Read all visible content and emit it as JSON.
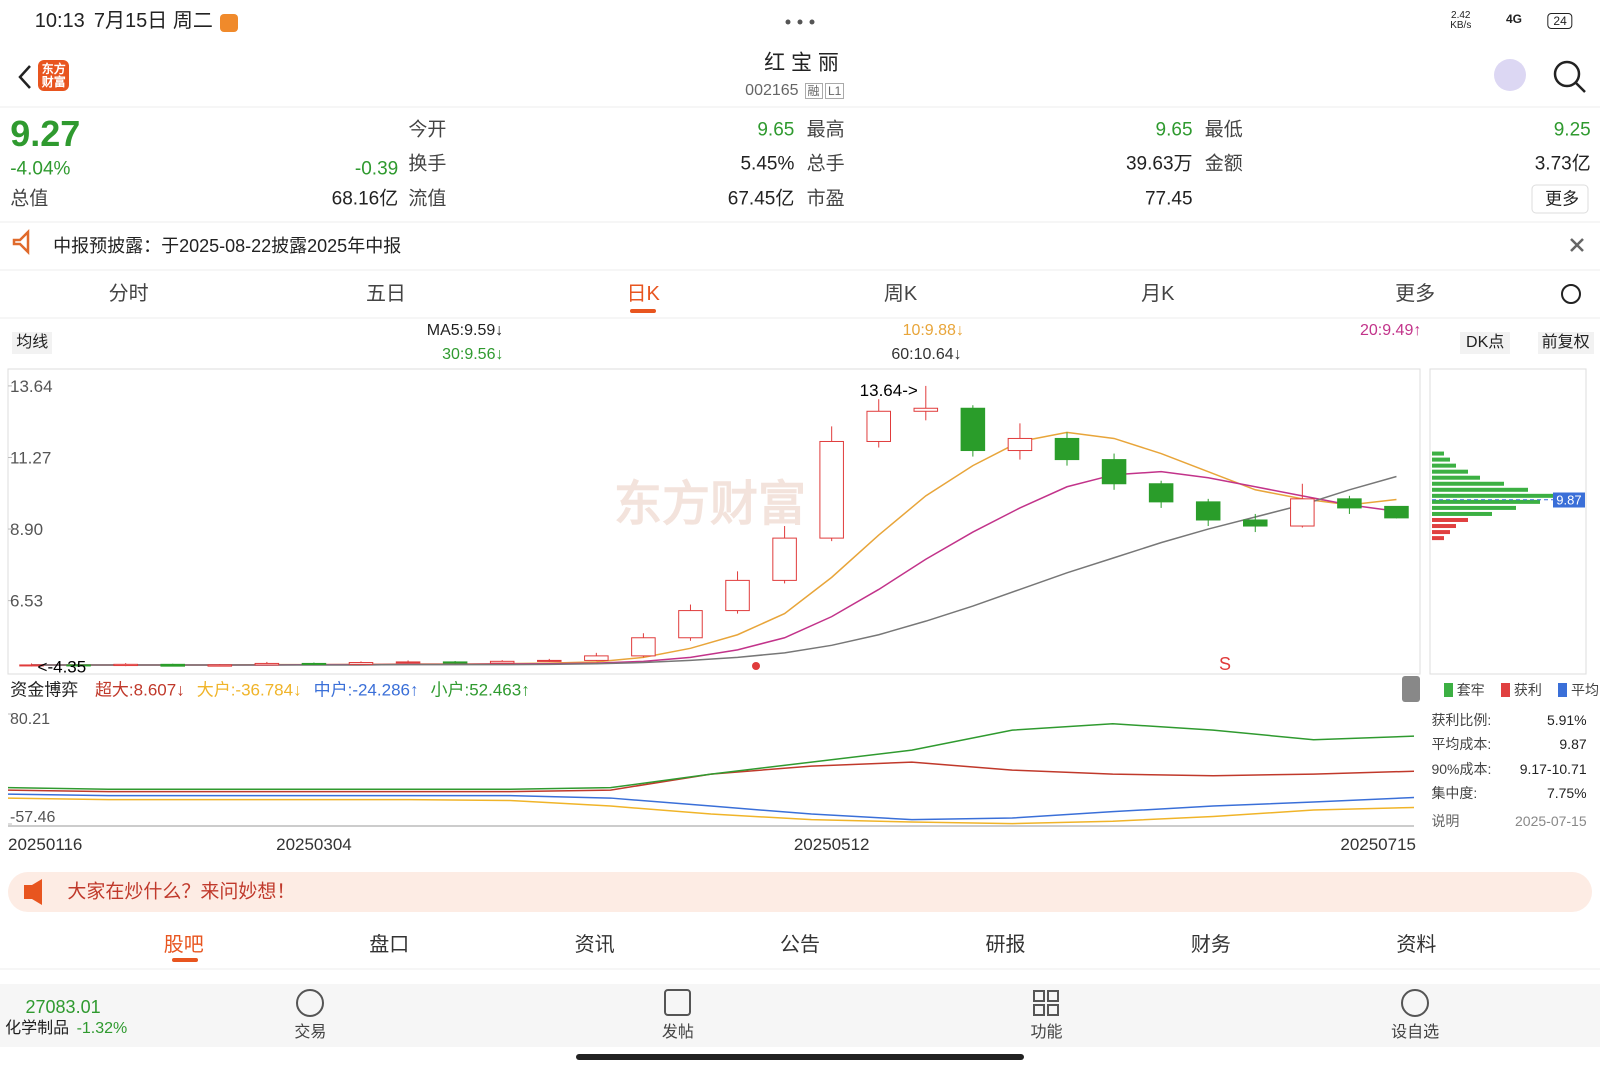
{
  "status_bar": {
    "time": "10:13",
    "date": "7月15日 周二",
    "speed": "2.42 KB/s",
    "network": "4G",
    "battery": "24"
  },
  "header": {
    "logo": "东方财富",
    "title": "红 宝 丽",
    "code": "002165",
    "badges": [
      "融",
      "L1"
    ]
  },
  "quote": {
    "price": "9.27",
    "change_pct": "-4.04%",
    "change": "-0.39",
    "fields": [
      {
        "label": "今开",
        "value": "9.65"
      },
      {
        "label": "最高",
        "value": "9.65"
      },
      {
        "label": "最低",
        "value": "9.25"
      },
      {
        "label": "换手",
        "value": "5.45%"
      },
      {
        "label": "总手",
        "value": "39.63万"
      },
      {
        "label": "金额",
        "value": "3.73亿"
      },
      {
        "label": "总值",
        "value": "68.16亿"
      },
      {
        "label": "流值",
        "value": "67.45亿"
      },
      {
        "label": "市盈",
        "value": "77.45"
      }
    ],
    "more": "更多"
  },
  "notice": "中报预披露：于2025-08-22披露2025年中报",
  "period_tabs": [
    "分时",
    "五日",
    "日K",
    "周K",
    "月K",
    "更多"
  ],
  "ma_selector": "均线",
  "ma_labels": [
    {
      "text": "MA5:9.59↓",
      "color": "#222222"
    },
    {
      "text": "10:9.88↓",
      "color": "#e8a53a"
    },
    {
      "text": "20:9.49↑",
      "color": "#c2338a"
    },
    {
      "text": "30:9.56↓",
      "color": "#2f9a2f"
    },
    {
      "text": "60:10.64↓",
      "color": "#333333"
    }
  ],
  "dk_button": "DK点",
  "adjust_button": "前复权",
  "kline": {
    "type": "candlestick",
    "watermark": "东方财富",
    "signal": "S",
    "up_color": "#e03b3b",
    "down_color": "#2a9d2a",
    "categories": [
      "20250116",
      null,
      null,
      null,
      null,
      null,
      "20250304",
      null,
      null,
      null,
      null,
      null,
      null,
      null,
      null,
      null,
      null,
      "20250512",
      null,
      null,
      null,
      null,
      null,
      null,
      null,
      null,
      null,
      null,
      null,
      "20250715"
    ],
    "open": [
      4.38,
      4.4,
      4.38,
      4.42,
      4.36,
      4.4,
      4.45,
      4.42,
      4.48,
      4.5,
      4.46,
      4.52,
      4.55,
      4.7,
      5.3,
      6.2,
      7.2,
      8.6,
      11.8,
      12.8,
      12.9,
      11.5,
      11.9,
      11.2,
      10.4,
      9.8,
      9.2,
      9.0,
      9.9,
      9.65
    ],
    "close": [
      4.4,
      4.38,
      4.42,
      4.36,
      4.4,
      4.45,
      4.42,
      4.48,
      4.5,
      4.46,
      4.52,
      4.55,
      4.7,
      5.3,
      6.2,
      7.2,
      8.6,
      11.8,
      12.8,
      12.9,
      11.5,
      11.9,
      11.2,
      10.4,
      9.8,
      9.2,
      9.0,
      9.9,
      9.6,
      9.27
    ],
    "high": [
      4.45,
      4.44,
      4.46,
      4.44,
      4.43,
      4.5,
      4.48,
      4.52,
      4.55,
      4.53,
      4.56,
      4.6,
      4.8,
      5.45,
      6.4,
      7.5,
      9.0,
      12.3,
      13.2,
      13.64,
      13.0,
      12.4,
      12.1,
      11.4,
      10.5,
      9.9,
      9.4,
      10.4,
      10.0,
      9.65
    ],
    "low": [
      4.35,
      4.35,
      4.36,
      4.35,
      4.36,
      4.38,
      4.4,
      4.41,
      4.46,
      4.44,
      4.45,
      4.5,
      4.53,
      4.65,
      5.2,
      6.1,
      7.1,
      8.5,
      11.6,
      12.5,
      11.3,
      11.2,
      11.0,
      10.2,
      9.6,
      9.0,
      8.8,
      8.95,
      9.4,
      9.25
    ],
    "ma_lines": [
      {
        "color": "#e8a53a",
        "values": [
          4.4,
          4.4,
          4.4,
          4.4,
          4.4,
          4.41,
          4.41,
          4.42,
          4.43,
          4.43,
          4.44,
          4.46,
          4.5,
          4.65,
          4.95,
          5.4,
          6.1,
          7.3,
          8.7,
          10.0,
          11.0,
          11.8,
          12.1,
          11.9,
          11.4,
          10.8,
          10.2,
          9.9,
          9.7,
          9.88
        ]
      },
      {
        "color": "#c2338a",
        "values": [
          4.4,
          4.4,
          4.4,
          4.4,
          4.4,
          4.4,
          4.41,
          4.41,
          4.42,
          4.42,
          4.43,
          4.44,
          4.46,
          4.52,
          4.65,
          4.9,
          5.3,
          6.0,
          6.9,
          7.9,
          8.8,
          9.6,
          10.3,
          10.7,
          10.8,
          10.6,
          10.3,
          10.0,
          9.7,
          9.49
        ]
      },
      {
        "color": "#777777",
        "values": [
          4.4,
          4.4,
          4.4,
          4.4,
          4.4,
          4.4,
          4.4,
          4.4,
          4.41,
          4.41,
          4.41,
          4.42,
          4.44,
          4.48,
          4.55,
          4.65,
          4.8,
          5.05,
          5.4,
          5.85,
          6.35,
          6.9,
          7.45,
          7.95,
          8.45,
          8.9,
          9.3,
          9.7,
          10.2,
          10.64
        ]
      }
    ],
    "max_label": "13.64->",
    "min_label": "<-4.35",
    "ylim": [
      4.1,
      14.2
    ],
    "yticks": [
      13.64,
      11.27,
      {
        "value": 8.9,
        "label": "8.90"
      },
      6.53
    ],
    "grid": false
  },
  "fund_flow": {
    "type": "line",
    "selector": "资金博弈",
    "series": [
      {
        "name": "超大:8.607↓",
        "color": "#c0392b",
        "values": [
          -15,
          -17,
          -17,
          -17,
          -17,
          -17,
          -15,
          5,
          15,
          20,
          10,
          5,
          3,
          5,
          8.607
        ]
      },
      {
        "name": "大户:-36.784↓",
        "color": "#f0b429",
        "values": [
          -25,
          -27,
          -27,
          -27,
          -27,
          -28,
          -35,
          -45,
          -52,
          -55,
          -57,
          -54,
          -48,
          -40,
          -36.784
        ]
      },
      {
        "name": "中户:-24.286↑",
        "color": "#3a6fd8",
        "values": [
          -20,
          -22,
          -22,
          -22,
          -22,
          -22,
          -25,
          -35,
          -45,
          -52,
          -50,
          -42,
          -35,
          -30,
          -24.286
        ]
      },
      {
        "name": "小户:52.463↑",
        "color": "#2f9a2f",
        "values": [
          -12,
          -14,
          -14,
          -14,
          -14,
          -14,
          -12,
          5,
          20,
          35,
          60,
          68,
          60,
          48,
          52.463
        ]
      }
    ],
    "ylim": [
      -57.46,
      80.21
    ],
    "yticks": [
      80.21,
      -57.46
    ]
  },
  "chip_distribution": {
    "type": "bar",
    "ylim": [
      4.1,
      14.2
    ],
    "xlim": [
      0,
      25
    ],
    "series": [
      {
        "name": "套牢",
        "color": "#3cb043",
        "prices": [
          9.4,
          9.6,
          9.8,
          10.0,
          10.2,
          10.4,
          10.6,
          10.8,
          11.0,
          11.2,
          11.4
        ],
        "volumes": [
          10,
          14,
          18,
          22,
          16,
          12,
          8,
          6,
          4,
          3,
          2
        ]
      },
      {
        "name": "获利",
        "color": "#e04040",
        "prices": [
          8.6,
          8.8,
          9.0,
          9.2
        ],
        "volumes": [
          2,
          3,
          4,
          6
        ]
      }
    ],
    "average": {
      "name": "平均",
      "color": "#3a6fd8",
      "value": 9.87
    },
    "stats": [
      {
        "label": "获利比例:",
        "value": "5.91%"
      },
      {
        "label": "平均成本:",
        "value": "9.87"
      },
      {
        "label": "90%成本:",
        "value": "9.17-10.71"
      },
      {
        "label": "集中度:",
        "value": "7.75%"
      }
    ],
    "note": "说明",
    "date": "2025-07-15"
  },
  "banner": "大家在炒什么？来问妙想！",
  "bottom_tabs": [
    "股吧",
    "盘口",
    "资讯",
    "公告",
    "研报",
    "财务",
    "资料"
  ],
  "index_bar": {
    "value": "27083.01",
    "name": "化学制品",
    "change": "-1.32%"
  },
  "nav": [
    "交易",
    "发帖",
    "功能",
    "设自选"
  ]
}
